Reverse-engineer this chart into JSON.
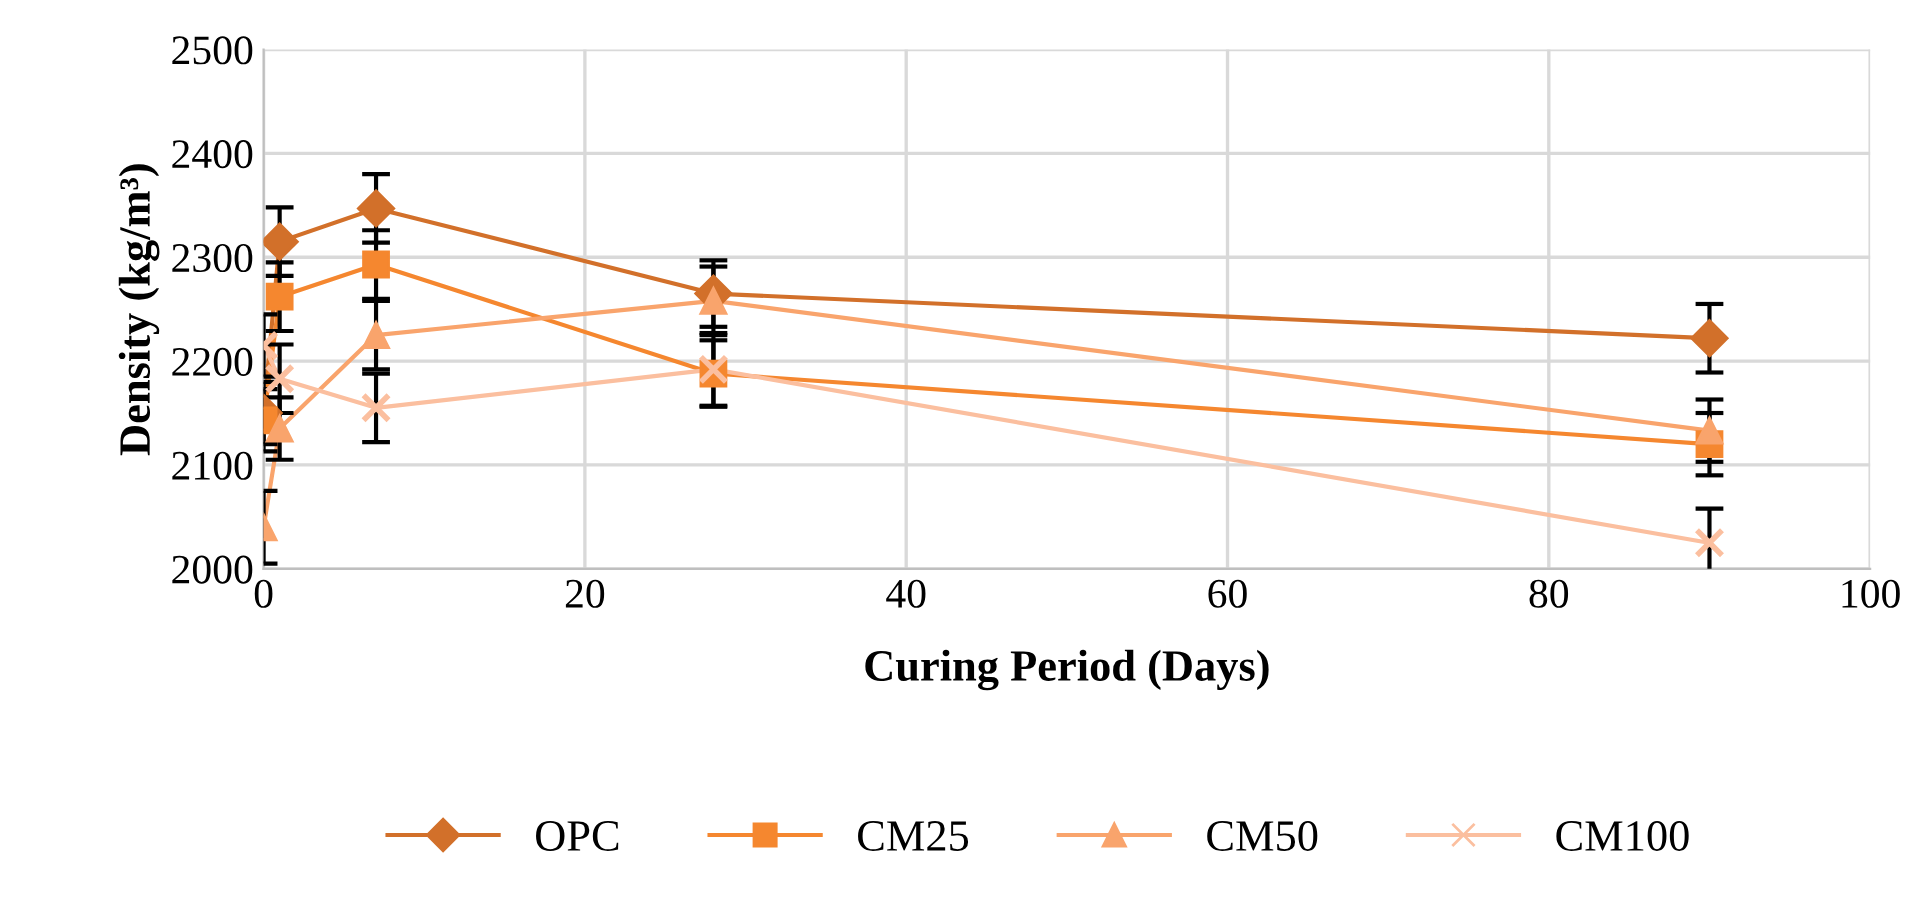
{
  "chart_data": {
    "type": "line",
    "xlabel": "Curing Period (Days)",
    "ylabel": "Density (kg/m³)",
    "x": [
      0,
      1,
      7,
      28,
      90
    ],
    "xlim": [
      0,
      100
    ],
    "xticks": [
      0,
      20,
      40,
      60,
      80,
      100
    ],
    "ylim": [
      2000,
      2500
    ],
    "yticks": [
      2000,
      2100,
      2200,
      2300,
      2400,
      2500
    ],
    "grid": true,
    "legend": "bottom",
    "line_style": "solid",
    "series": [
      {
        "name": "OPC",
        "color": "#d2702a",
        "marker": "diamond",
        "values": [
          2150,
          2315,
          2347,
          2265,
          2222
        ],
        "errors": [
          30,
          33,
          33,
          32,
          33
        ]
      },
      {
        "name": "CM25",
        "color": "#f5872f",
        "marker": "square",
        "values": [
          2143,
          2262,
          2293,
          2188,
          2120
        ],
        "errors": [
          30,
          33,
          33,
          32,
          30
        ]
      },
      {
        "name": "CM50",
        "color": "#f9a46c",
        "marker": "triangle",
        "values": [
          2040,
          2135,
          2225,
          2258,
          2133
        ],
        "errors": [
          35,
          30,
          33,
          33,
          30
        ]
      },
      {
        "name": "CM100",
        "color": "#fbbf9f",
        "marker": "cross",
        "values": [
          2215,
          2183,
          2155,
          2192,
          2025
        ],
        "errors": [
          30,
          33,
          33,
          35,
          33
        ]
      }
    ]
  }
}
